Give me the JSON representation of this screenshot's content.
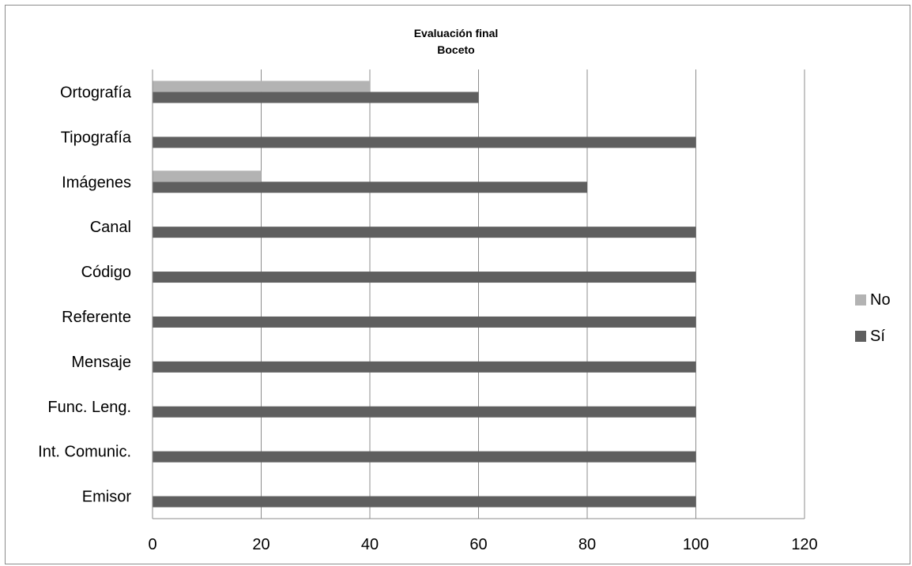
{
  "chart_data": {
    "type": "bar",
    "orientation": "horizontal",
    "title": "Evaluación final",
    "subtitle": "Boceto",
    "categories": [
      "Emisor",
      "Int. Comunic.",
      "Func. Leng.",
      "Mensaje",
      "Referente",
      "Código",
      "Canal",
      "Imágenes",
      "Tipografía",
      "Ortografía"
    ],
    "series": [
      {
        "name": "Sí",
        "color": "#5f5f5f",
        "values": [
          100,
          100,
          100,
          100,
          100,
          100,
          100,
          80,
          100,
          60
        ]
      },
      {
        "name": "No",
        "color": "#b3b3b3",
        "values": [
          0,
          0,
          0,
          0,
          0,
          0,
          0,
          20,
          0,
          40
        ]
      }
    ],
    "xlim": [
      0,
      120
    ],
    "xticks": [
      0,
      20,
      40,
      60,
      80,
      100,
      120
    ],
    "grid": "vertical",
    "legend_position": "right"
  }
}
